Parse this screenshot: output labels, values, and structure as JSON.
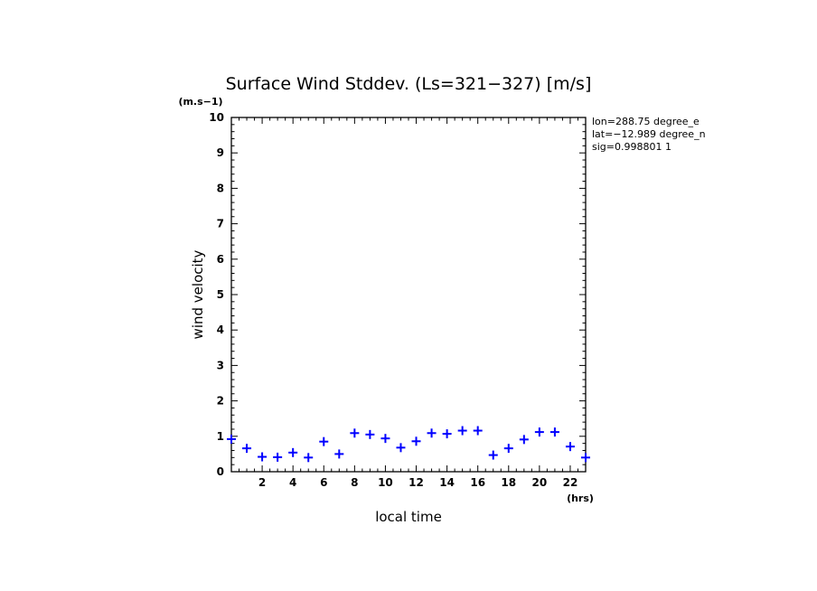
{
  "chart_data": {
    "type": "scatter",
    "title": "Surface Wind Stddev. (Ls=321−327) [m/s]",
    "xlabel": "local time",
    "ylabel": "wind velocity",
    "x_unit": "(hrs)",
    "y_unit": "(m.s−1)",
    "xlim": [
      0,
      23
    ],
    "ylim": [
      0,
      10
    ],
    "x_ticks": [
      2,
      4,
      6,
      8,
      10,
      12,
      14,
      16,
      18,
      20,
      22
    ],
    "y_ticks": [
      0,
      1,
      2,
      3,
      4,
      5,
      6,
      7,
      8,
      9,
      10
    ],
    "marker": "+",
    "marker_color": "#0000ff",
    "grid": false,
    "info_lines": [
      "lon=288.75 degree_e",
      "lat=−12.989 degree_n",
      "sig=0.998801 1"
    ],
    "x": [
      0,
      1,
      2,
      3,
      4,
      5,
      6,
      7,
      8,
      9,
      10,
      11,
      12,
      13,
      14,
      15,
      16,
      17,
      18,
      19,
      20,
      21,
      22,
      23
    ],
    "y": [
      0.92,
      0.66,
      0.42,
      0.41,
      0.54,
      0.4,
      0.85,
      0.5,
      1.09,
      1.05,
      0.94,
      0.68,
      0.86,
      1.09,
      1.07,
      1.16,
      1.16,
      0.47,
      0.66,
      0.91,
      1.12,
      1.12,
      0.71,
      0.4
    ]
  }
}
